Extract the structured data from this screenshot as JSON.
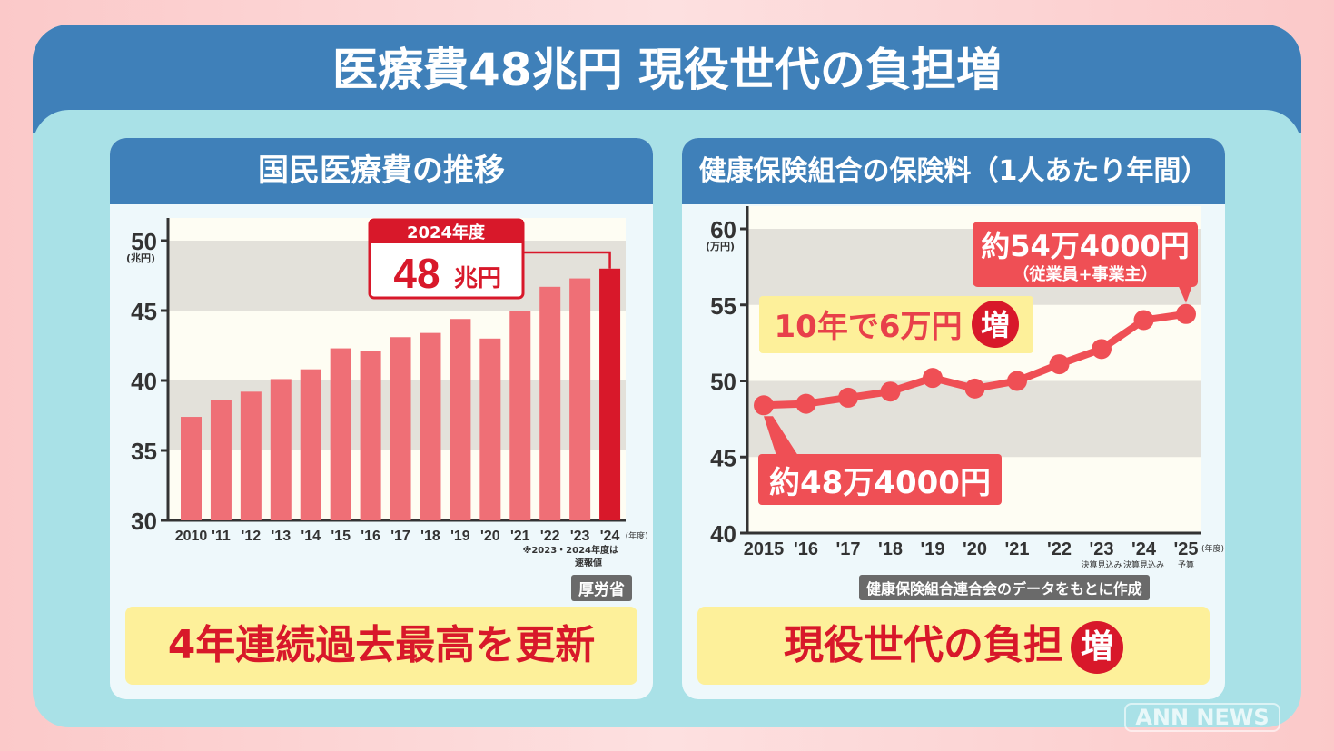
{
  "header": {
    "title": "医療費48兆円 現役世代の負担増"
  },
  "left": {
    "title": "国民医療費の推移",
    "banner": "4年連続過去最高を更新",
    "source": "厚労省",
    "note1": "※2023・2024年度は",
    "note2": "速報値"
  },
  "right": {
    "title": "健康保険組合の保険料（1人あたり年間）",
    "banner": "現役世代の負担",
    "banner_badge": "増",
    "source": "健康保険組合連合会のデータをもとに作成"
  },
  "watermark": "ANN NEWS",
  "chart_data": [
    {
      "type": "bar",
      "title": "国民医療費の推移",
      "ylabel": "(兆円)",
      "xlabel_unit": "(年度)",
      "ylim": [
        30,
        50
      ],
      "yticks": [
        30,
        35,
        40,
        45,
        50
      ],
      "categories": [
        "2010",
        "'11",
        "'12",
        "'13",
        "'14",
        "'15",
        "'16",
        "'17",
        "'18",
        "'19",
        "'20",
        "'21",
        "'22",
        "'23",
        "'24"
      ],
      "values": [
        37.4,
        38.6,
        39.2,
        40.1,
        40.8,
        42.3,
        42.1,
        43.1,
        43.4,
        44.4,
        43.0,
        45.0,
        46.7,
        47.3,
        48.0
      ],
      "highlight_index": 14,
      "colors": {
        "bar": "#ef6f76",
        "highlight": "#d8182a"
      },
      "annotation": {
        "label": "2024年度",
        "value": "48",
        "unit": "兆円"
      }
    },
    {
      "type": "line",
      "title": "健康保険組合の保険料（1人あたり年間）",
      "ylabel": "(万円)",
      "xlabel_unit": "(年度)",
      "ylim": [
        40,
        60
      ],
      "yticks": [
        40,
        45,
        50,
        55,
        60
      ],
      "categories": [
        "2015",
        "'16",
        "'17",
        "'18",
        "'19",
        "'20",
        "'21",
        "'22",
        "'23",
        "'24",
        "'25"
      ],
      "sublabels": [
        "",
        "",
        "",
        "",
        "",
        "",
        "",
        "",
        "決算見込み",
        "決算見込み",
        "予算"
      ],
      "values": [
        48.4,
        48.5,
        48.9,
        49.3,
        50.2,
        49.5,
        50.0,
        51.1,
        52.1,
        54.0,
        54.4
      ],
      "color": "#ef4f55",
      "annotations": {
        "start": "約48万4000円",
        "end": "約54万4000円",
        "end_sub": "（従業員+事業主）",
        "increase": "10年で6万円",
        "increase_badge": "増"
      }
    }
  ]
}
